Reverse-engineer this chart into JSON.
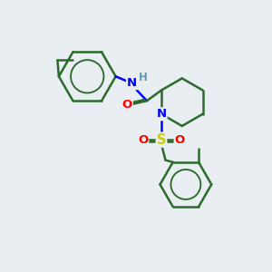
{
  "background_color": "#e8eef2",
  "bond_color": "#2d6b2d",
  "N_color": "#0000ff",
  "O_color": "#ff0000",
  "S_color": "#cccc00",
  "H_color": "#6699aa",
  "lw": 1.8,
  "figsize": [
    3.0,
    3.0
  ],
  "dpi": 100,
  "xlim": [
    0,
    10
  ],
  "ylim": [
    0,
    10
  ]
}
